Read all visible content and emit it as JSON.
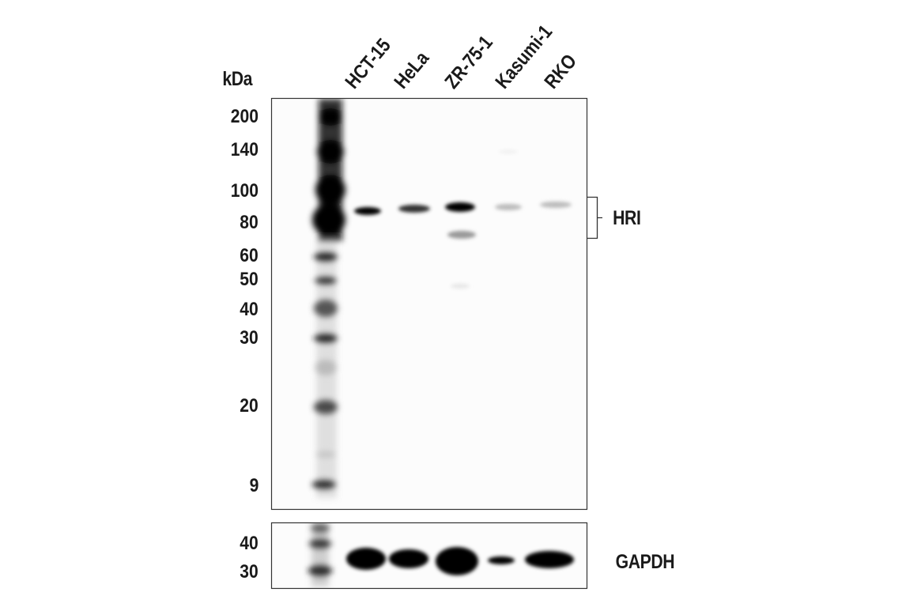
{
  "unit_label": "kDa",
  "lanes": [
    "HCT-15",
    "HeLa",
    "ZR-75-1",
    "Kasumi-1",
    "RKO"
  ],
  "markers_main": [
    "200",
    "140",
    "100",
    "80",
    "60",
    "50",
    "40",
    "30",
    "20",
    "9"
  ],
  "markers_control": [
    "40",
    "30"
  ],
  "target_label": "HRI",
  "control_label": "GAPDH",
  "colors": {
    "band": "#000000",
    "background": "#fcfcfc",
    "frame": "#333333"
  }
}
